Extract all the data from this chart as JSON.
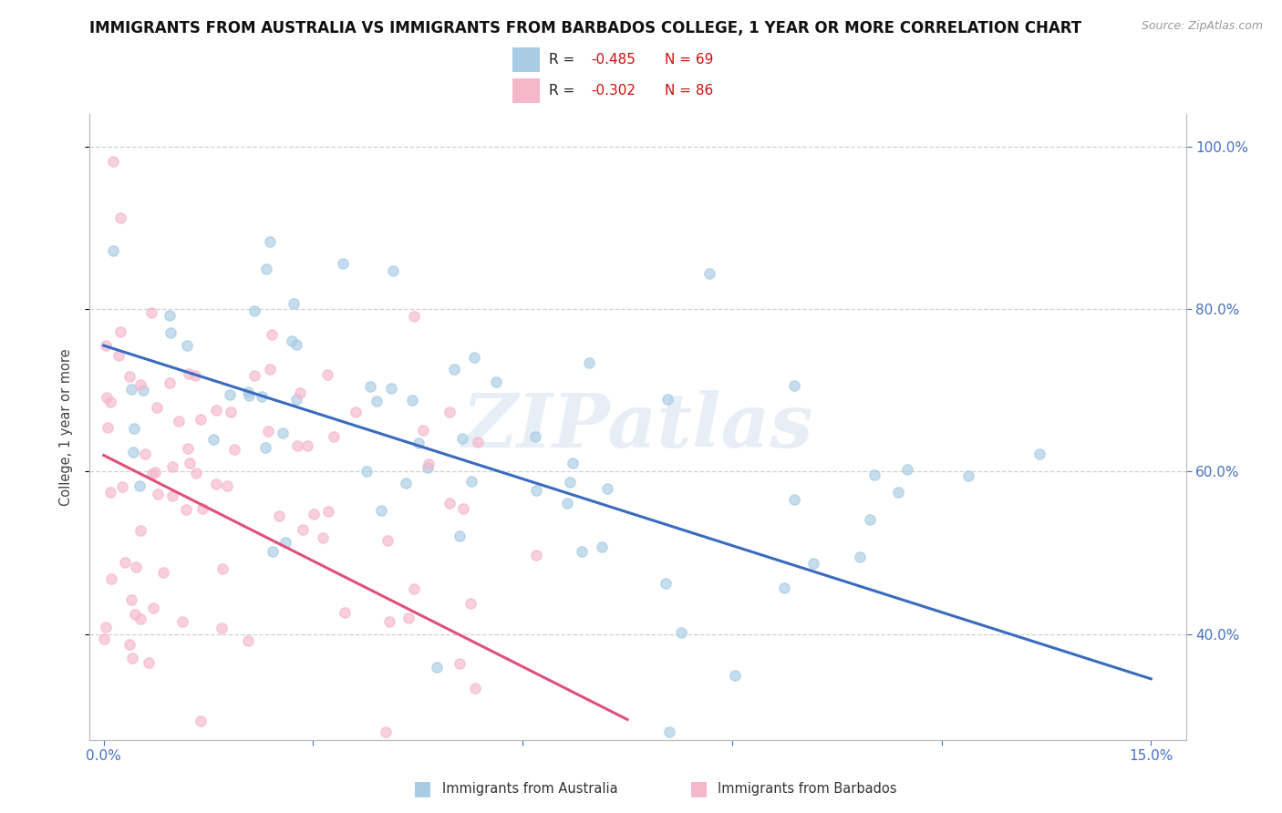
{
  "title": "IMMIGRANTS FROM AUSTRALIA VS IMMIGRANTS FROM BARBADOS COLLEGE, 1 YEAR OR MORE CORRELATION CHART",
  "source_text": "Source: ZipAtlas.com",
  "ylabel": "College, 1 year or more",
  "xlim": [
    -0.002,
    0.155
  ],
  "ylim": [
    0.27,
    1.04
  ],
  "australia_color": "#a8cce4",
  "barbados_color": "#f5b8cb",
  "australia_line_color": "#3a6bbf",
  "barbados_line_color": "#e0507a",
  "R_australia": -0.485,
  "N_australia": 69,
  "R_barbados": -0.302,
  "N_barbados": 86,
  "background_color": "#ffffff",
  "grid_color": "#cccccc",
  "tick_color": "#4472c4",
  "watermark": "ZIPatlas",
  "title_fontsize": 12,
  "label_fontsize": 10.5,
  "tick_fontsize": 11,
  "aus_line_x0": 0.0,
  "aus_line_y0": 0.755,
  "aus_line_x1": 0.15,
  "aus_line_y1": 0.345,
  "bar_line_x0": 0.0,
  "bar_line_y0": 0.62,
  "bar_line_x1": 0.075,
  "bar_line_y1": 0.295
}
